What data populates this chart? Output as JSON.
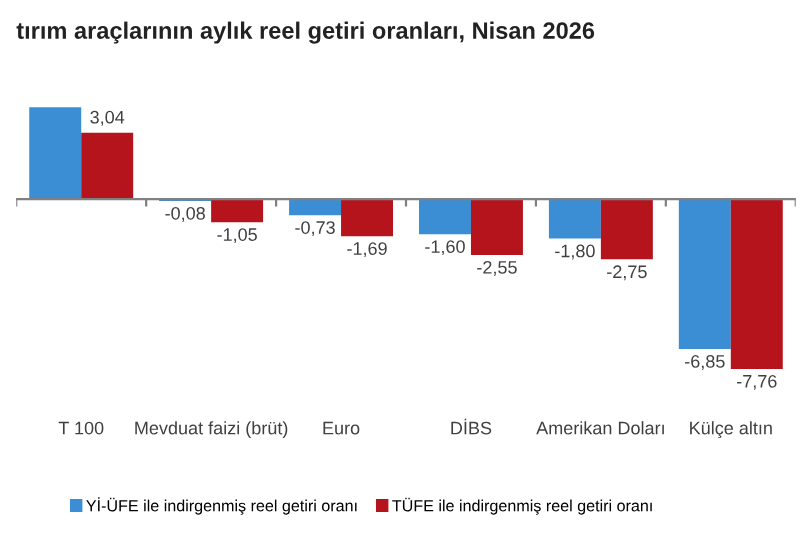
{
  "chart_data": {
    "type": "bar",
    "title": "tırım araçlarının aylık reel getiri oranları, Nisan 2026",
    "categories": [
      "T 100",
      "Mevduat faizi (brüt)",
      "Euro",
      "DİBS",
      "Amerikan Doları",
      "Külçe altın"
    ],
    "series": [
      {
        "name": "Yİ-ÜFE ile indirgenmiş reel getiri oranı",
        "color": "#3b8ed4",
        "values": [
          4.2,
          -0.08,
          -0.73,
          -1.6,
          -1.8,
          -6.85
        ],
        "value_labels": [
          null,
          "-0,08",
          "-0,73",
          "-1,60",
          "-1,80",
          "-6,85"
        ]
      },
      {
        "name": "TÜFE ile indirgenmiş reel getiri oranı",
        "color": "#b5141c",
        "values": [
          3.04,
          -1.05,
          -1.69,
          -2.55,
          -2.75,
          -7.76
        ],
        "value_labels": [
          "3,04",
          "-1,05",
          "-1,69",
          "-2,55",
          "-2,75",
          "-7,76"
        ]
      }
    ],
    "legend": "bottom left",
    "grid": false
  }
}
